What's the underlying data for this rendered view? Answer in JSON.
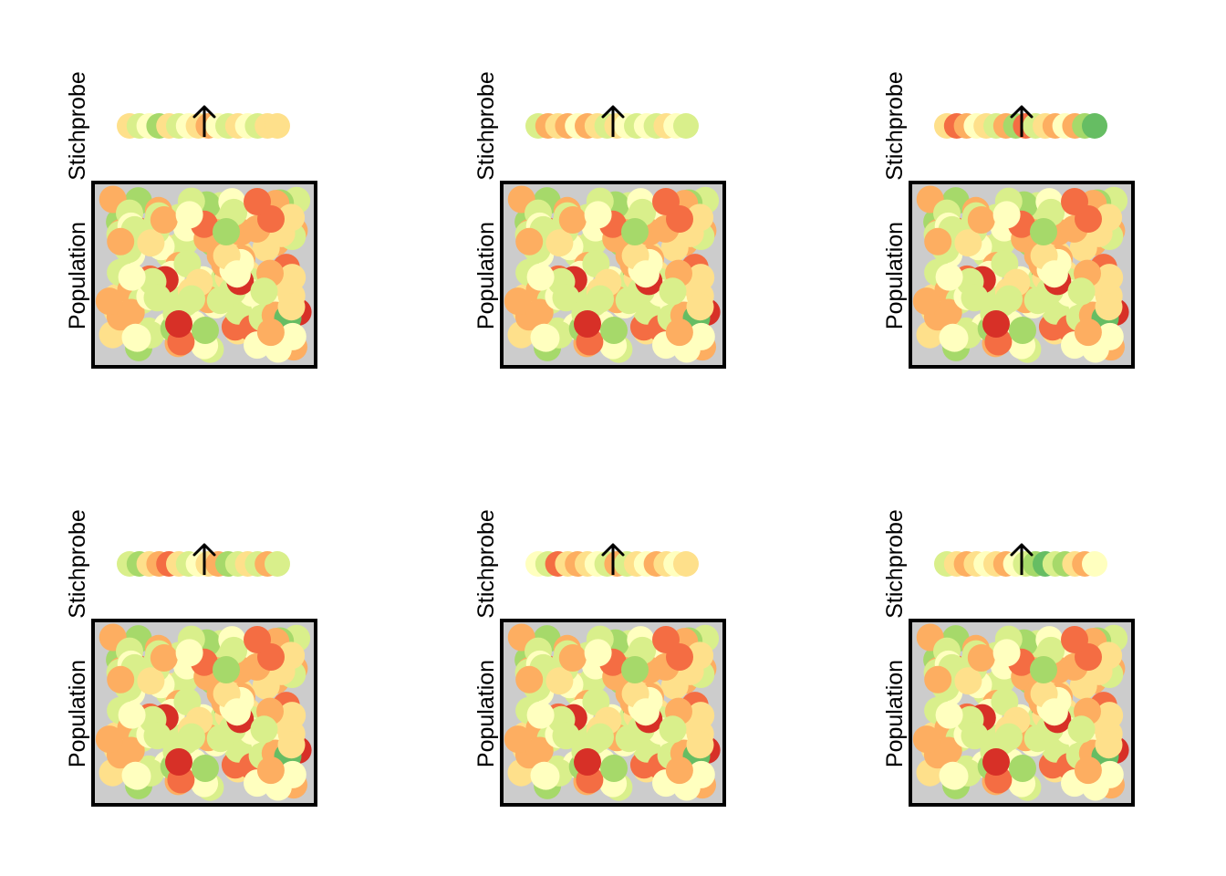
{
  "figure": {
    "panel_count": 6,
    "labels": {
      "sample": "Stichprobe",
      "population": "Population"
    },
    "population_background": "#cccccc",
    "frame_color": "#000000",
    "palette": [
      "#d73027",
      "#f46d43",
      "#fdae61",
      "#fee08b",
      "#ffffbf",
      "#d9ef8b",
      "#a6d96a",
      "#66bd63"
    ],
    "panels": [
      {
        "sample_colors": [
          "#fee08b",
          "#d9ef8b",
          "#ffffbf",
          "#a6d96a",
          "#fee08b",
          "#d9ef8b",
          "#ffffbf",
          "#fee08b",
          "#fdae61",
          "#ffffbf",
          "#d9ef8b",
          "#fee08b",
          "#ffffbf",
          "#d9ef8b",
          "#fee08b",
          "#fee08b"
        ]
      },
      {
        "sample_colors": [
          "#d9ef8b",
          "#fdae61",
          "#fee08b",
          "#fdae61",
          "#ffffbf",
          "#fdae61",
          "#fee08b",
          "#d9ef8b",
          "#fee08b",
          "#ffffbf",
          "#d9ef8b",
          "#ffffbf",
          "#d9ef8b",
          "#fee08b",
          "#ffffbf",
          "#d9ef8b"
        ]
      },
      {
        "sample_colors": [
          "#fee08b",
          "#f46d43",
          "#fdae61",
          "#ffffbf",
          "#fee08b",
          "#d9ef8b",
          "#fdae61",
          "#a6d96a",
          "#f46d43",
          "#d9ef8b",
          "#fee08b",
          "#fdae61",
          "#ffffbf",
          "#fdae61",
          "#a6d96a",
          "#66bd63"
        ]
      },
      {
        "sample_colors": [
          "#d9ef8b",
          "#a6d96a",
          "#fee08b",
          "#fdae61",
          "#f46d43",
          "#fee08b",
          "#d9ef8b",
          "#ffffbf",
          "#fee08b",
          "#fdae61",
          "#a6d96a",
          "#d9ef8b",
          "#fee08b",
          "#d9ef8b",
          "#fdae61",
          "#d9ef8b"
        ]
      },
      {
        "sample_colors": [
          "#ffffbf",
          "#d9ef8b",
          "#f46d43",
          "#fee08b",
          "#fdae61",
          "#fee08b",
          "#ffffbf",
          "#d9ef8b",
          "#fdae61",
          "#d9ef8b",
          "#fee08b",
          "#ffffbf",
          "#fdae61",
          "#fee08b",
          "#ffffbf",
          "#fee08b"
        ]
      },
      {
        "sample_colors": [
          "#d9ef8b",
          "#fee08b",
          "#fdae61",
          "#fee08b",
          "#ffffbf",
          "#fee08b",
          "#fdae61",
          "#ffffbf",
          "#d9ef8b",
          "#a6d96a",
          "#66bd63",
          "#d9ef8b",
          "#a6d96a",
          "#fee08b",
          "#fdae61",
          "#ffffbf"
        ]
      }
    ]
  }
}
